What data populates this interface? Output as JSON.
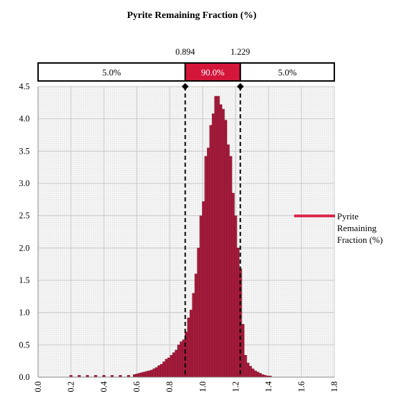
{
  "chart_data": {
    "type": "bar",
    "title": "Pyrite Remaining Fraction (%)",
    "xlabel": "",
    "ylabel": "",
    "xlim": [
      0.0,
      1.8
    ],
    "ylim": [
      0.0,
      4.5
    ],
    "x_ticks": [
      "0.0",
      "0.2",
      "0.4",
      "0.6",
      "0.8",
      "1.0",
      "1.2",
      "1.4",
      "1.6",
      "1.8"
    ],
    "y_ticks": [
      "0.0",
      "0.5",
      "1.0",
      "1.5",
      "2.0",
      "2.5",
      "3.0",
      "3.5",
      "4.0",
      "4.5"
    ],
    "grid": true,
    "bin_width": 0.016,
    "bins": [
      {
        "x": 0.2,
        "y": 0.03
      },
      {
        "x": 0.25,
        "y": 0.03
      },
      {
        "x": 0.3,
        "y": 0.03
      },
      {
        "x": 0.35,
        "y": 0.03
      },
      {
        "x": 0.4,
        "y": 0.03
      },
      {
        "x": 0.45,
        "y": 0.03
      },
      {
        "x": 0.5,
        "y": 0.03
      },
      {
        "x": 0.55,
        "y": 0.03
      },
      {
        "x": 0.585,
        "y": 0.04
      },
      {
        "x": 0.6,
        "y": 0.05
      },
      {
        "x": 0.615,
        "y": 0.06
      },
      {
        "x": 0.63,
        "y": 0.07
      },
      {
        "x": 0.645,
        "y": 0.08
      },
      {
        "x": 0.66,
        "y": 0.09
      },
      {
        "x": 0.675,
        "y": 0.1
      },
      {
        "x": 0.69,
        "y": 0.11
      },
      {
        "x": 0.705,
        "y": 0.13
      },
      {
        "x": 0.72,
        "y": 0.15
      },
      {
        "x": 0.735,
        "y": 0.18
      },
      {
        "x": 0.75,
        "y": 0.2
      },
      {
        "x": 0.765,
        "y": 0.24
      },
      {
        "x": 0.78,
        "y": 0.28
      },
      {
        "x": 0.795,
        "y": 0.3
      },
      {
        "x": 0.81,
        "y": 0.34
      },
      {
        "x": 0.825,
        "y": 0.38
      },
      {
        "x": 0.84,
        "y": 0.42
      },
      {
        "x": 0.855,
        "y": 0.5
      },
      {
        "x": 0.87,
        "y": 0.55
      },
      {
        "x": 0.885,
        "y": 0.58
      },
      {
        "x": 0.9,
        "y": 0.7
      },
      {
        "x": 0.915,
        "y": 0.92
      },
      {
        "x": 0.93,
        "y": 1.04
      },
      {
        "x": 0.945,
        "y": 1.3
      },
      {
        "x": 0.96,
        "y": 1.6
      },
      {
        "x": 0.975,
        "y": 2.0
      },
      {
        "x": 0.99,
        "y": 2.5
      },
      {
        "x": 1.005,
        "y": 2.72
      },
      {
        "x": 1.02,
        "y": 3.42
      },
      {
        "x": 1.035,
        "y": 3.55
      },
      {
        "x": 1.05,
        "y": 3.9
      },
      {
        "x": 1.065,
        "y": 4.08
      },
      {
        "x": 1.08,
        "y": 4.35
      },
      {
        "x": 1.095,
        "y": 4.35
      },
      {
        "x": 1.11,
        "y": 4.22
      },
      {
        "x": 1.125,
        "y": 4.15
      },
      {
        "x": 1.14,
        "y": 3.98
      },
      {
        "x": 1.155,
        "y": 3.6
      },
      {
        "x": 1.17,
        "y": 3.42
      },
      {
        "x": 1.185,
        "y": 2.85
      },
      {
        "x": 1.2,
        "y": 2.5
      },
      {
        "x": 1.215,
        "y": 2.0
      },
      {
        "x": 1.23,
        "y": 1.68
      },
      {
        "x": 1.245,
        "y": 0.82
      },
      {
        "x": 1.26,
        "y": 0.34
      },
      {
        "x": 1.275,
        "y": 0.22
      },
      {
        "x": 1.29,
        "y": 0.17
      },
      {
        "x": 1.305,
        "y": 0.13
      },
      {
        "x": 1.32,
        "y": 0.1
      },
      {
        "x": 1.335,
        "y": 0.08
      },
      {
        "x": 1.35,
        "y": 0.06
      },
      {
        "x": 1.365,
        "y": 0.04
      },
      {
        "x": 1.38,
        "y": 0.03
      },
      {
        "x": 1.395,
        "y": 0.02
      },
      {
        "x": 1.41,
        "y": 0.02
      }
    ],
    "markers": [
      {
        "value": 0.894,
        "label": "0.894"
      },
      {
        "value": 1.229,
        "label": "1.229"
      }
    ],
    "percentile_band": [
      {
        "label": "5.0%",
        "from": 0.0,
        "to": 0.894,
        "highlight": false
      },
      {
        "label": "90.0%",
        "from": 0.894,
        "to": 1.229,
        "highlight": true
      },
      {
        "label": "5.0%",
        "from": 1.229,
        "to": 1.8,
        "highlight": false
      }
    ],
    "legend": {
      "placement": "right",
      "entries": [
        {
          "label": "Pyrite Remaining Fraction (%)",
          "lines": [
            "Pyrite",
            "Remaining",
            "Fraction (%)"
          ]
        }
      ]
    },
    "colors": {
      "series": "#a31b3b",
      "series_edge": "#7f1129",
      "legend_line": "#dc2a4c",
      "highlight_band": "#d5163b",
      "grid": "#c8c8c8",
      "plot_background": "#f2f2f2"
    }
  }
}
